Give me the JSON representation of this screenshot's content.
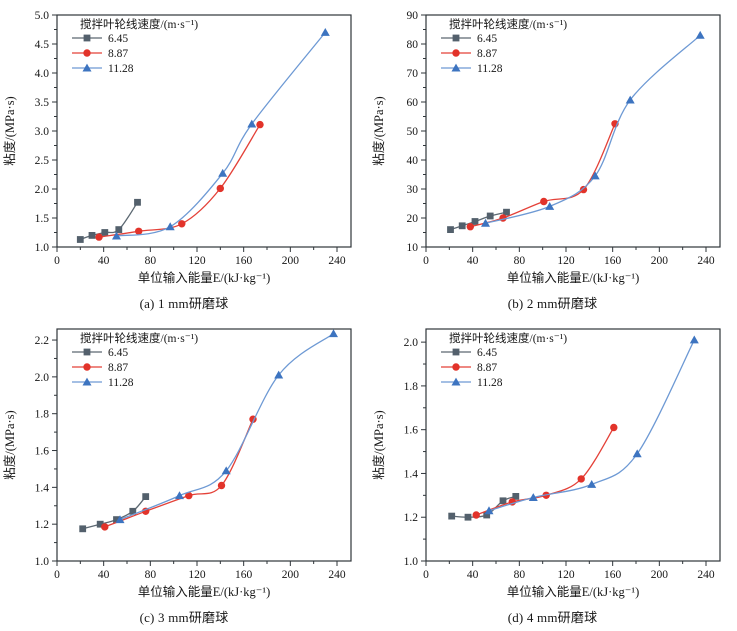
{
  "figure": {
    "legend_title": "搅拌叶轮线速度/(m·s⁻¹)",
    "xlabel": "单位输入能量E/(kJ·kg⁻¹)",
    "ylabel": "粘度/(MPa·s)",
    "series_labels": [
      "6.45",
      "8.87",
      "11.28"
    ]
  },
  "colors": {
    "gray_marker": "#53606c",
    "gray_line": "#5c6872",
    "red_marker": "#e2332a",
    "red_line": "#e44138",
    "blue_marker": "#3d74c0",
    "blue_line": "#6d99d4",
    "axis": "#2f353a",
    "text": "#161616"
  },
  "chart_data": [
    {
      "id": "a",
      "type": "line",
      "caption": "(a) 1 mm研磨球",
      "xlabel": "单位输入能量E/(kJ·kg⁻¹)",
      "ylabel": "粘度/(MPa·s)",
      "legend_title": "搅拌叶轮线速度/(m·s⁻¹)",
      "legend_position": "top-left",
      "grid": false,
      "xlim": [
        0,
        252
      ],
      "ylim": [
        1.0,
        5.0
      ],
      "xticks": [
        0,
        40,
        80,
        120,
        160,
        200,
        240
      ],
      "yticks": [
        1.0,
        1.5,
        2.0,
        2.5,
        3.0,
        3.5,
        4.0,
        4.5,
        5.0
      ],
      "ydecimals": 1,
      "series": [
        {
          "name": "6.45",
          "marker": "square",
          "marker_color": "#53606c",
          "line_color": "#5c6872",
          "points": [
            [
              20,
              1.13
            ],
            [
              30,
              1.2
            ],
            [
              41,
              1.25
            ],
            [
              53,
              1.3
            ],
            [
              69,
              1.77
            ]
          ]
        },
        {
          "name": "8.87",
          "marker": "circle",
          "marker_color": "#e2332a",
          "line_color": "#e44138",
          "points": [
            [
              36,
              1.17
            ],
            [
              70,
              1.27
            ],
            [
              107,
              1.4
            ],
            [
              140,
              2.01
            ],
            [
              174,
              3.11
            ]
          ]
        },
        {
          "name": "11.28",
          "marker": "triangle",
          "marker_color": "#3d74c0",
          "line_color": "#6d99d4",
          "points": [
            [
              51,
              1.19
            ],
            [
              97,
              1.35
            ],
            [
              142,
              2.27
            ],
            [
              167,
              3.12
            ],
            [
              230,
              4.7
            ]
          ]
        }
      ]
    },
    {
      "id": "b",
      "type": "line",
      "caption": "(b) 2 mm研磨球",
      "xlabel": "单位输入能量E/(kJ·kg⁻¹)",
      "ylabel": "粘度/(MPa·s)",
      "legend_title": "搅拌叶轮线速度/(m·s⁻¹)",
      "legend_position": "top-left",
      "grid": false,
      "xlim": [
        0,
        252
      ],
      "ylim": [
        10,
        90
      ],
      "xticks": [
        0,
        40,
        80,
        120,
        160,
        200,
        240
      ],
      "yticks": [
        10,
        20,
        30,
        40,
        50,
        60,
        70,
        80,
        90
      ],
      "ydecimals": 0,
      "series": [
        {
          "name": "6.45",
          "marker": "square",
          "marker_color": "#53606c",
          "line_color": "#5c6872",
          "points": [
            [
              21,
              16.0
            ],
            [
              31,
              17.3
            ],
            [
              42,
              18.8
            ],
            [
              55,
              20.7
            ],
            [
              69,
              22.0
            ]
          ]
        },
        {
          "name": "8.87",
          "marker": "circle",
          "marker_color": "#e2332a",
          "line_color": "#e44138",
          "points": [
            [
              38,
              17.0
            ],
            [
              66,
              20.0
            ],
            [
              101,
              25.7
            ],
            [
              135,
              29.8
            ],
            [
              162,
              52.5
            ]
          ]
        },
        {
          "name": "11.28",
          "marker": "triangle",
          "marker_color": "#3d74c0",
          "line_color": "#6d99d4",
          "points": [
            [
              51,
              18.2
            ],
            [
              106,
              24.0
            ],
            [
              145,
              34.5
            ],
            [
              175,
              60.7
            ],
            [
              235,
              83.0
            ]
          ]
        }
      ]
    },
    {
      "id": "c",
      "type": "line",
      "caption": "(c) 3 mm研磨球",
      "xlabel": "单位输入能量E/(kJ·kg⁻¹)",
      "ylabel": "粘度/(MPa·s)",
      "legend_title": "搅拌叶轮线速度/(m·s⁻¹)",
      "legend_position": "top-left",
      "grid": false,
      "xlim": [
        0,
        252
      ],
      "ylim": [
        1.0,
        2.26
      ],
      "xticks": [
        0,
        40,
        80,
        120,
        160,
        200,
        240
      ],
      "yticks": [
        1.0,
        1.2,
        1.4,
        1.6,
        1.8,
        2.0,
        2.2
      ],
      "ydecimals": 1,
      "series": [
        {
          "name": "6.45",
          "marker": "square",
          "marker_color": "#53606c",
          "line_color": "#5c6872",
          "points": [
            [
              22,
              1.175
            ],
            [
              37,
              1.2
            ],
            [
              51,
              1.225
            ],
            [
              65,
              1.27
            ],
            [
              76,
              1.35
            ]
          ]
        },
        {
          "name": "8.87",
          "marker": "circle",
          "marker_color": "#e2332a",
          "line_color": "#e44138",
          "points": [
            [
              41,
              1.185
            ],
            [
              76,
              1.27
            ],
            [
              113,
              1.355
            ],
            [
              141,
              1.41
            ],
            [
              168,
              1.77
            ]
          ]
        },
        {
          "name": "11.28",
          "marker": "triangle",
          "marker_color": "#3d74c0",
          "line_color": "#6d99d4",
          "points": [
            [
              54,
              1.225
            ],
            [
              105,
              1.355
            ],
            [
              145,
              1.49
            ],
            [
              190,
              2.01
            ],
            [
              237,
              2.235
            ]
          ]
        }
      ]
    },
    {
      "id": "d",
      "type": "line",
      "caption": "(d) 4 mm研磨球",
      "xlabel": "单位输入能量E/(kJ·kg⁻¹)",
      "ylabel": "粘度/(MPa·s)",
      "legend_title": "搅拌叶轮线速度/(m·s⁻¹)",
      "legend_position": "top-left",
      "grid": false,
      "xlim": [
        0,
        252
      ],
      "ylim": [
        1.0,
        2.06
      ],
      "xticks": [
        0,
        40,
        80,
        120,
        160,
        200,
        240
      ],
      "yticks": [
        1.0,
        1.2,
        1.4,
        1.6,
        1.8,
        2.0
      ],
      "ydecimals": 1,
      "series": [
        {
          "name": "6.45",
          "marker": "square",
          "marker_color": "#53606c",
          "line_color": "#5c6872",
          "points": [
            [
              22,
              1.205
            ],
            [
              36,
              1.2
            ],
            [
              52,
              1.21
            ],
            [
              66,
              1.275
            ],
            [
              77,
              1.295
            ]
          ]
        },
        {
          "name": "8.87",
          "marker": "circle",
          "marker_color": "#e2332a",
          "line_color": "#e44138",
          "points": [
            [
              43,
              1.21
            ],
            [
              74,
              1.27
            ],
            [
              103,
              1.3
            ],
            [
              133,
              1.375
            ],
            [
              161,
              1.61
            ]
          ]
        },
        {
          "name": "11.28",
          "marker": "triangle",
          "marker_color": "#3d74c0",
          "line_color": "#6d99d4",
          "points": [
            [
              54,
              1.23
            ],
            [
              92,
              1.29
            ],
            [
              142,
              1.35
            ],
            [
              181,
              1.49
            ],
            [
              230,
              2.01
            ]
          ]
        }
      ]
    }
  ]
}
